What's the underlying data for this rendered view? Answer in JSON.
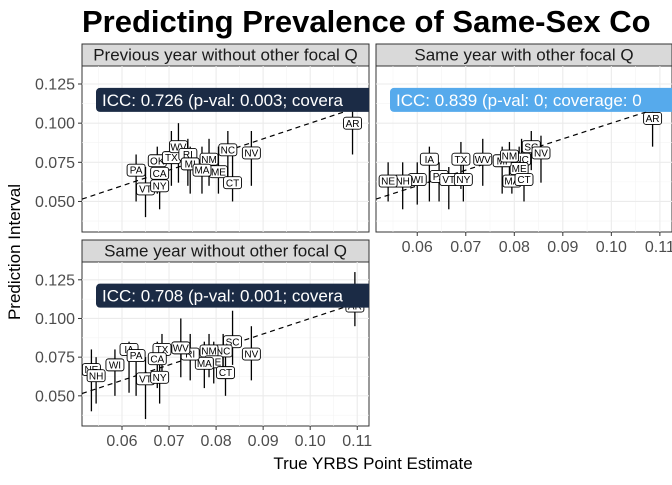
{
  "chart_data": {
    "type": "scatter",
    "title": "Predicting Prevalence of Same-Sex Co",
    "xlabel": "True YRBS Point Estimate",
    "ylabel": "Prediction Interval",
    "xlim": [
      0.0515,
      0.1125
    ],
    "ylim": [
      0.0305,
      0.1365
    ],
    "x_ticks": [
      0.06,
      0.07,
      0.08,
      0.09,
      0.1,
      0.11
    ],
    "x_tick_labels": [
      "0.06",
      "0.07",
      "0.08",
      "0.09",
      "0.10",
      "0.11"
    ],
    "y_ticks": [
      0.05,
      0.075,
      0.1,
      0.125
    ],
    "y_tick_labels": [
      "0.050",
      "0.075",
      "0.100",
      "0.125"
    ],
    "grid": true,
    "reference_line": "y = x",
    "panels": [
      {
        "label": "Previous year without other focal Q",
        "icc_label": "ICC: 0.726 (p-val: 0.003; covera",
        "icc_color": "#1b2b45",
        "points": [
          {
            "state": "AR",
            "x": 0.109,
            "lo": 0.08,
            "hi": 0.11,
            "label_y": 0.1
          },
          {
            "state": "PA",
            "x": 0.063,
            "lo": 0.05,
            "hi": 0.08,
            "label_y": 0.07
          },
          {
            "state": "VT",
            "x": 0.065,
            "lo": 0.04,
            "hi": 0.072,
            "label_y": 0.058
          },
          {
            "state": "NY",
            "x": 0.068,
            "lo": 0.045,
            "hi": 0.075,
            "label_y": 0.06
          },
          {
            "state": "OK",
            "x": 0.0675,
            "lo": 0.055,
            "hi": 0.085,
            "label_y": 0.076
          },
          {
            "state": "CA",
            "x": 0.068,
            "lo": 0.055,
            "hi": 0.08,
            "label_y": 0.068
          },
          {
            "state": "TX",
            "x": 0.0705,
            "lo": 0.06,
            "hi": 0.095,
            "label_y": 0.078
          },
          {
            "state": "WV",
            "x": 0.072,
            "lo": 0.062,
            "hi": 0.1,
            "label_y": 0.085
          },
          {
            "state": "RI",
            "x": 0.074,
            "lo": 0.06,
            "hi": 0.09,
            "label_y": 0.08
          },
          {
            "state": "MI",
            "x": 0.0745,
            "lo": 0.055,
            "hi": 0.085,
            "label_y": 0.074
          },
          {
            "state": "NM",
            "x": 0.0785,
            "lo": 0.06,
            "hi": 0.09,
            "label_y": 0.077
          },
          {
            "state": "ME",
            "x": 0.0805,
            "lo": 0.055,
            "hi": 0.085,
            "label_y": 0.069
          },
          {
            "state": "MA",
            "x": 0.077,
            "lo": 0.055,
            "hi": 0.085,
            "label_y": 0.07
          },
          {
            "state": "NC",
            "x": 0.0825,
            "lo": 0.065,
            "hi": 0.095,
            "label_y": 0.083
          },
          {
            "state": "CT",
            "x": 0.0835,
            "lo": 0.05,
            "hi": 0.08,
            "label_y": 0.062
          },
          {
            "state": "NV",
            "x": 0.0875,
            "lo": 0.06,
            "hi": 0.095,
            "label_y": 0.081
          }
        ]
      },
      {
        "label": "Same year with other focal Q",
        "icc_label": "ICC: 0.839 (p-val: 0; coverage: 0",
        "icc_color": "#56aaec",
        "points": [
          {
            "state": "AR",
            "x": 0.1085,
            "lo": 0.085,
            "hi": 0.115,
            "label_y": 0.103
          },
          {
            "state": "SC",
            "x": 0.0835,
            "lo": 0.07,
            "hi": 0.095,
            "label_y": 0.085
          },
          {
            "state": "NV",
            "x": 0.0855,
            "lo": 0.062,
            "hi": 0.092,
            "label_y": 0.081
          },
          {
            "state": "NC",
            "x": 0.0815,
            "lo": 0.062,
            "hi": 0.09,
            "label_y": 0.077
          },
          {
            "state": "ME",
            "x": 0.081,
            "lo": 0.06,
            "hi": 0.085,
            "label_y": 0.071
          },
          {
            "state": "MI",
            "x": 0.0775,
            "lo": 0.055,
            "hi": 0.085,
            "label_y": 0.076
          },
          {
            "state": "NM",
            "x": 0.079,
            "lo": 0.06,
            "hi": 0.088,
            "label_y": 0.079
          },
          {
            "state": "MA",
            "x": 0.0795,
            "lo": 0.055,
            "hi": 0.08,
            "label_y": 0.063
          },
          {
            "state": "CT",
            "x": 0.082,
            "lo": 0.05,
            "hi": 0.08,
            "label_y": 0.064
          },
          {
            "state": "WV",
            "x": 0.0735,
            "lo": 0.06,
            "hi": 0.09,
            "label_y": 0.077
          },
          {
            "state": "TX",
            "x": 0.069,
            "lo": 0.058,
            "hi": 0.088,
            "label_y": 0.077
          },
          {
            "state": "IA",
            "x": 0.0625,
            "lo": 0.05,
            "hi": 0.085,
            "label_y": 0.077
          },
          {
            "state": "PA",
            "x": 0.0645,
            "lo": 0.05,
            "hi": 0.075,
            "label_y": 0.066
          },
          {
            "state": "VT",
            "x": 0.0665,
            "lo": 0.045,
            "hi": 0.072,
            "label_y": 0.064
          },
          {
            "state": "NY",
            "x": 0.0695,
            "lo": 0.05,
            "hi": 0.075,
            "label_y": 0.064
          },
          {
            "state": "WI",
            "x": 0.06,
            "lo": 0.048,
            "hi": 0.075,
            "label_y": 0.064
          },
          {
            "state": "NH",
            "x": 0.057,
            "lo": 0.045,
            "hi": 0.075,
            "label_y": 0.063
          },
          {
            "state": "NE",
            "x": 0.054,
            "lo": 0.05,
            "hi": 0.075,
            "label_y": 0.063
          }
        ]
      },
      {
        "label": "Same year without other focal Q",
        "icc_label": "ICC: 0.708 (p-val: 0.001; covera",
        "icc_color": "#1b2b45",
        "points": [
          {
            "state": "AR",
            "x": 0.1095,
            "lo": 0.095,
            "hi": 0.13,
            "label_y": 0.108
          },
          {
            "state": "SC",
            "x": 0.0835,
            "lo": 0.07,
            "hi": 0.105,
            "label_y": 0.085
          },
          {
            "state": "NC",
            "x": 0.0815,
            "lo": 0.065,
            "hi": 0.09,
            "label_y": 0.079
          },
          {
            "state": "NV",
            "x": 0.0875,
            "lo": 0.06,
            "hi": 0.095,
            "label_y": 0.077
          },
          {
            "state": "NM",
            "x": 0.0785,
            "lo": 0.062,
            "hi": 0.09,
            "label_y": 0.079
          },
          {
            "state": "ME",
            "x": 0.0795,
            "lo": 0.058,
            "hi": 0.085,
            "label_y": 0.072
          },
          {
            "state": "MA",
            "x": 0.0775,
            "lo": 0.055,
            "hi": 0.085,
            "label_y": 0.071
          },
          {
            "state": "CT",
            "x": 0.082,
            "lo": 0.05,
            "hi": 0.08,
            "label_y": 0.065
          },
          {
            "state": "RI",
            "x": 0.0745,
            "lo": 0.06,
            "hi": 0.09,
            "label_y": 0.077
          },
          {
            "state": "WV",
            "x": 0.0725,
            "lo": 0.062,
            "hi": 0.1,
            "label_y": 0.081
          },
          {
            "state": "TX",
            "x": 0.0685,
            "lo": 0.058,
            "hi": 0.09,
            "label_y": 0.08
          },
          {
            "state": "CA",
            "x": 0.0675,
            "lo": 0.055,
            "hi": 0.085,
            "label_y": 0.074
          },
          {
            "state": "IA",
            "x": 0.0615,
            "lo": 0.052,
            "hi": 0.085,
            "label_y": 0.08
          },
          {
            "state": "PA",
            "x": 0.063,
            "lo": 0.05,
            "hi": 0.08,
            "label_y": 0.076
          },
          {
            "state": "WI",
            "x": 0.0585,
            "lo": 0.05,
            "hi": 0.08,
            "label_y": 0.07
          },
          {
            "state": "VT",
            "x": 0.065,
            "lo": 0.035,
            "hi": 0.075,
            "label_y": 0.061
          },
          {
            "state": "NY",
            "x": 0.068,
            "lo": 0.045,
            "hi": 0.075,
            "label_y": 0.062
          },
          {
            "state": "NE",
            "x": 0.0535,
            "lo": 0.04,
            "hi": 0.08,
            "label_y": 0.067
          },
          {
            "state": "NH",
            "x": 0.0545,
            "lo": 0.045,
            "hi": 0.075,
            "label_y": 0.063
          }
        ]
      }
    ]
  }
}
